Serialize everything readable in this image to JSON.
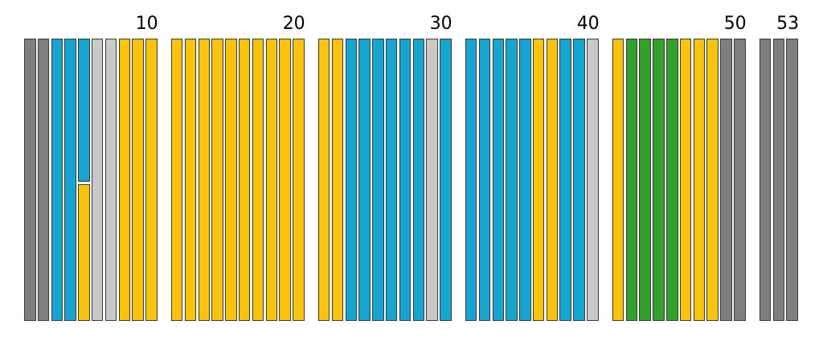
{
  "figure": {
    "background": "#ffffff",
    "text_color": "#000000"
  },
  "chart_data": {
    "type": "bar",
    "title": "",
    "xlabel": "",
    "ylabel": "",
    "description": "Sequence of 53 uniform-height vertical bars arranged in 6 groups; each bar colored by category. Position 5 is split vertically: cyan upper segment, yellow lower segment. Tick labels mark positions 10, 20, 30, 40, 50 and 53 above the last bar of each group.",
    "tick_labels": [
      "10",
      "20",
      "30",
      "40",
      "50",
      "53"
    ],
    "grid": false,
    "legend": null,
    "palette": {
      "darkgray": "#7f7f7f",
      "lightgray": "#c9c9c9",
      "cyan": "#16a4d0",
      "yellow": "#f9c40b",
      "green": "#33a02c",
      "border": "#3a3a3a"
    },
    "groups": [
      {
        "tick": "10",
        "bars": [
          "darkgray",
          "darkgray",
          "cyan",
          "cyan",
          {
            "segments": [
              {
                "color": "cyan",
                "frac": 0.507
              },
              {
                "color": "yellow",
                "frac": 0.485
              }
            ]
          },
          "lightgray",
          "lightgray",
          "yellow",
          "yellow",
          "yellow"
        ]
      },
      {
        "tick": "20",
        "bars": [
          "yellow",
          "yellow",
          "yellow",
          "yellow",
          "yellow",
          "yellow",
          "yellow",
          "yellow",
          "yellow",
          "yellow"
        ]
      },
      {
        "tick": "30",
        "bars": [
          "yellow",
          "yellow",
          "cyan",
          "cyan",
          "cyan",
          "cyan",
          "cyan",
          "cyan",
          "lightgray",
          "cyan"
        ]
      },
      {
        "tick": "40",
        "bars": [
          "cyan",
          "cyan",
          "cyan",
          "cyan",
          "cyan",
          "yellow",
          "yellow",
          "cyan",
          "cyan",
          "lightgray"
        ]
      },
      {
        "tick": "50",
        "bars": [
          "yellow",
          "green",
          "green",
          "green",
          "green",
          "yellow",
          "yellow",
          "yellow",
          "darkgray",
          "darkgray"
        ]
      },
      {
        "tick": "53",
        "bars": [
          "darkgray",
          "darkgray",
          "darkgray"
        ]
      }
    ]
  }
}
